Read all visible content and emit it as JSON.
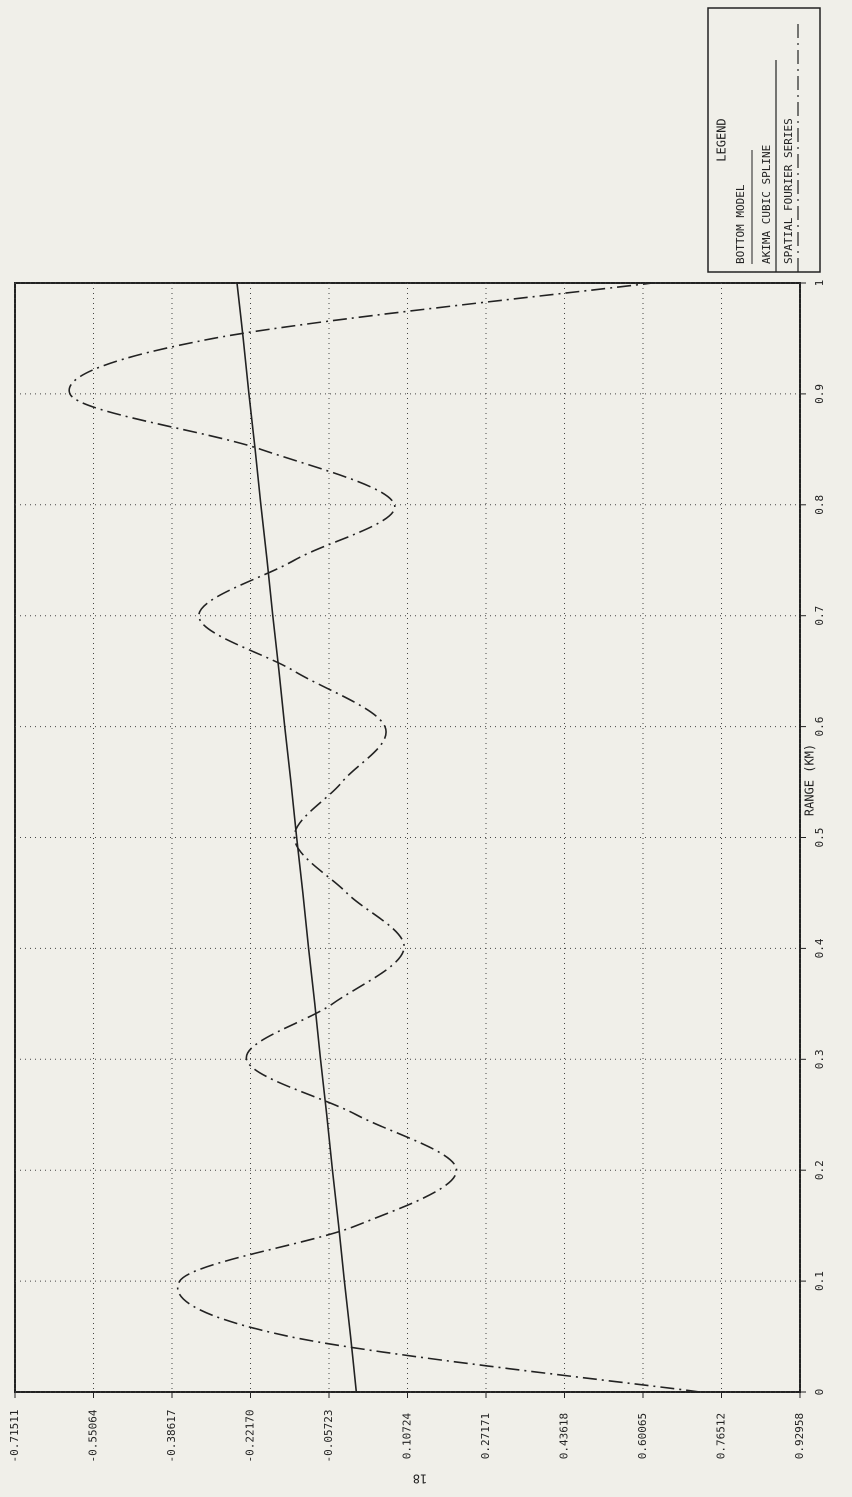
{
  "chart_data": {
    "type": "line",
    "x_label": "RANGE (KM)",
    "legend_title": "LEGEND",
    "legend_subtitle": "BOTTOM MODEL",
    "page_number": "18",
    "x": [
      0,
      0.05,
      0.1,
      0.15,
      0.2,
      0.25,
      0.3,
      0.35,
      0.4,
      0.45,
      0.5,
      0.55,
      0.6,
      0.65,
      0.7,
      0.75,
      0.8,
      0.85,
      0.9,
      0.95,
      1
    ],
    "series": [
      {
        "name": "AKIMA CUBIC SPLINE",
        "color": "#222222",
        "dash": "solid",
        "values": [
          0.0,
          -0.012,
          -0.025,
          -0.037,
          -0.05,
          -0.062,
          -0.075,
          -0.087,
          -0.1,
          -0.112,
          -0.125,
          -0.137,
          -0.15,
          -0.162,
          -0.175,
          -0.187,
          -0.2,
          -0.212,
          -0.225,
          -0.237,
          -0.25
        ]
      },
      {
        "name": "SPATIAL FOURIER SERIES",
        "color": "#222222",
        "dash": "dashdot",
        "values": [
          0.72,
          -0.14,
          -0.37,
          0.0,
          0.21,
          0.0,
          -0.23,
          -0.05,
          0.1,
          -0.02,
          -0.13,
          -0.03,
          0.06,
          -0.13,
          -0.33,
          -0.13,
          0.08,
          -0.2,
          -0.6,
          -0.3,
          0.62
        ]
      }
    ],
    "xlim": [
      0,
      1
    ],
    "xticks": [
      0,
      0.1,
      0.2,
      0.3,
      0.4,
      0.5,
      0.6,
      0.7,
      0.8,
      0.9,
      1
    ],
    "ylim": [
      -0.71511,
      0.92958
    ],
    "yticks": [
      -0.71511,
      -0.55064,
      -0.38617,
      {
        "value": -0.2217,
        "label": "-0.22170"
      },
      -0.05723,
      0.10724,
      0.27171,
      0.43618,
      0.60065,
      0.76512,
      0.92958
    ],
    "grid": true
  }
}
